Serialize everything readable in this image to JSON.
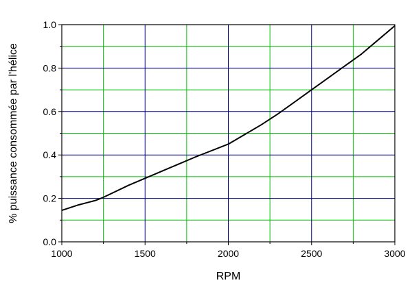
{
  "chart_data": {
    "type": "line",
    "xlabel": "RPM",
    "ylabel": "% puissance consommée par l'hélice",
    "xlim": [
      1000,
      3000
    ],
    "ylim": [
      0,
      1
    ],
    "x_ticks": [
      1000,
      1500,
      2000,
      2500,
      3000
    ],
    "x_tick_labels": [
      "1000",
      "1500",
      "2000",
      "2500",
      "3000"
    ],
    "y_ticks": [
      0,
      0.2,
      0.4,
      0.6,
      0.8,
      1.0
    ],
    "y_tick_labels": [
      "0.0",
      "0.2",
      "0.4",
      "0.6",
      "0.8",
      "1.0"
    ],
    "x_minor_gridlines": [
      1250,
      1750,
      2250,
      2750
    ],
    "y_minor_gridlines": [
      0.1,
      0.3,
      0.5,
      0.7,
      0.9
    ],
    "grid": true,
    "colors": {
      "major_grid": "#000080",
      "minor_grid": "#00c000",
      "line": "#000000",
      "frame": "#000000"
    },
    "series": [
      {
        "x": [
          1000,
          1100,
          1200,
          1250,
          1400,
          1600,
          1800,
          2000,
          2100,
          2200,
          2300,
          2400,
          2500,
          2600,
          2700,
          2800,
          2900,
          3000
        ],
        "y": [
          0.145,
          0.17,
          0.19,
          0.205,
          0.26,
          0.325,
          0.39,
          0.45,
          0.495,
          0.54,
          0.59,
          0.645,
          0.7,
          0.755,
          0.81,
          0.865,
          0.93,
          0.995
        ]
      }
    ]
  }
}
